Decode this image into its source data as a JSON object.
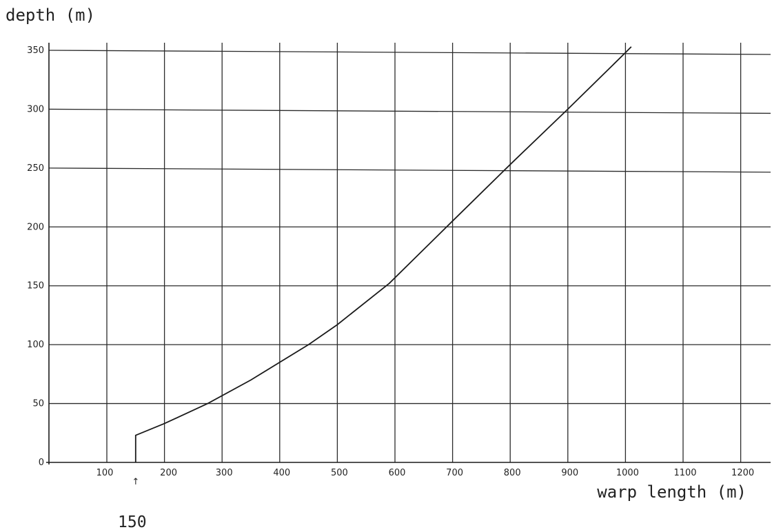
{
  "chart_data": {
    "type": "line",
    "title": "",
    "ylabel": "depth (m)",
    "xlabel": "warp length (m)",
    "xlim": [
      0,
      1250
    ],
    "ylim": [
      0,
      350
    ],
    "x_ticks": [
      100,
      200,
      300,
      400,
      500,
      600,
      700,
      800,
      900,
      1000,
      1100,
      1200
    ],
    "y_ticks": [
      0,
      50,
      100,
      150,
      200,
      250,
      300,
      350
    ],
    "grid": true,
    "series": [
      {
        "x": [
          150,
          150,
          200,
          275,
          350,
          450,
          500,
          590,
          700,
          800,
          900,
          1000,
          1010
        ],
        "y": [
          0,
          23,
          33,
          50,
          70,
          100,
          117,
          152,
          205,
          253,
          300,
          348,
          353
        ]
      }
    ],
    "annotations": [
      {
        "x": 150,
        "arrow": "↑",
        "label": "150"
      }
    ]
  }
}
